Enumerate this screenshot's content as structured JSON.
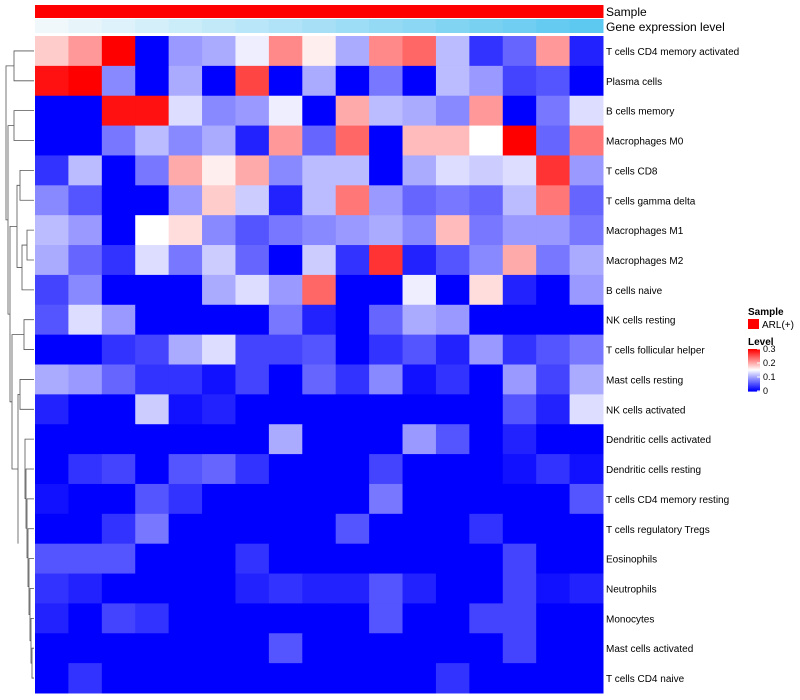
{
  "chart_data": {
    "type": "heatmap",
    "annotation_tracks": [
      {
        "name": "Sample",
        "colors_note": "all red"
      },
      {
        "name": "Gene expression level",
        "colors_note": "gradient light to sky blue"
      }
    ],
    "rows": [
      "T cells CD4 memory activated",
      "Plasma cells",
      "B cells memory",
      "Macrophages M0",
      "T cells CD8",
      "T cells gamma delta",
      "Macrophages M1",
      "Macrophages M2",
      "B cells naive",
      "NK cells resting",
      "T cells follicular helper",
      "Mast cells resting",
      "NK cells activated",
      "Dendritic cells activated",
      "Dendritic cells resting",
      "T cells CD4 memory resting",
      "T cells regulatory  Tregs",
      "Eosinophils",
      "Neutrophils",
      "Monocytes",
      "Mast cells activated",
      "T cells CD4 naive"
    ],
    "values": [
      [
        0.18,
        0.21,
        0.3,
        0.0,
        0.09,
        0.1,
        0.14,
        0.22,
        0.16,
        0.1,
        0.22,
        0.24,
        0.11,
        0.03,
        0.06,
        0.21,
        0.02
      ],
      [
        0.29,
        0.3,
        0.08,
        0.0,
        0.1,
        0.0,
        0.26,
        0.0,
        0.1,
        0.0,
        0.07,
        0.0,
        0.11,
        0.09,
        0.04,
        0.05,
        0.0
      ],
      [
        0.0,
        0.0,
        0.29,
        0.29,
        0.13,
        0.08,
        0.09,
        0.14,
        0.0,
        0.2,
        0.11,
        0.1,
        0.08,
        0.21,
        0.0,
        0.07,
        0.13
      ],
      [
        0.0,
        0.0,
        0.07,
        0.11,
        0.08,
        0.1,
        0.02,
        0.21,
        0.06,
        0.24,
        0.0,
        0.19,
        0.19,
        0.15,
        0.3,
        0.06,
        0.23
      ],
      [
        0.03,
        0.11,
        0.0,
        0.07,
        0.2,
        0.16,
        0.2,
        0.08,
        0.11,
        0.11,
        0.0,
        0.1,
        0.13,
        0.12,
        0.13,
        0.27,
        0.09
      ],
      [
        0.08,
        0.05,
        0.0,
        0.0,
        0.09,
        0.18,
        0.12,
        0.02,
        0.11,
        0.23,
        0.09,
        0.06,
        0.07,
        0.06,
        0.11,
        0.23,
        0.06
      ],
      [
        0.11,
        0.09,
        0.0,
        0.15,
        0.17,
        0.08,
        0.05,
        0.07,
        0.08,
        0.09,
        0.1,
        0.08,
        0.19,
        0.07,
        0.09,
        0.09,
        0.07
      ],
      [
        0.1,
        0.06,
        0.03,
        0.13,
        0.07,
        0.12,
        0.06,
        0.0,
        0.12,
        0.03,
        0.27,
        0.02,
        0.05,
        0.08,
        0.2,
        0.07,
        0.1
      ],
      [
        0.04,
        0.08,
        0.0,
        0.0,
        0.0,
        0.1,
        0.13,
        0.09,
        0.24,
        0.0,
        0.0,
        0.14,
        0.0,
        0.17,
        0.02,
        0.0,
        0.09
      ],
      [
        0.05,
        0.13,
        0.09,
        0.0,
        0.0,
        0.0,
        0.0,
        0.07,
        0.02,
        0.0,
        0.06,
        0.1,
        0.09,
        0.0,
        0.0,
        0.0,
        0.0
      ],
      [
        0.0,
        0.0,
        0.03,
        0.04,
        0.1,
        0.13,
        0.04,
        0.04,
        0.05,
        0.0,
        0.03,
        0.05,
        0.02,
        0.09,
        0.03,
        0.05,
        0.07
      ],
      [
        0.1,
        0.09,
        0.06,
        0.03,
        0.03,
        0.01,
        0.04,
        0.0,
        0.06,
        0.03,
        0.08,
        0.01,
        0.03,
        0.0,
        0.09,
        0.04,
        0.1
      ],
      [
        0.02,
        0.0,
        0.0,
        0.12,
        0.01,
        0.02,
        0.0,
        0.0,
        0.0,
        0.0,
        0.0,
        0.0,
        0.0,
        0.0,
        0.05,
        0.02,
        0.13
      ],
      [
        0.0,
        0.0,
        0.0,
        0.0,
        0.0,
        0.0,
        0.0,
        0.1,
        0.0,
        0.0,
        0.0,
        0.09,
        0.05,
        0.0,
        0.02,
        0.0,
        0.0
      ],
      [
        0.0,
        0.03,
        0.04,
        0.0,
        0.05,
        0.06,
        0.03,
        0.0,
        0.0,
        0.0,
        0.04,
        0.0,
        0.0,
        0.0,
        0.01,
        0.03,
        0.01
      ],
      [
        0.01,
        0.0,
        0.0,
        0.05,
        0.03,
        0.0,
        0.0,
        0.0,
        0.0,
        0.0,
        0.07,
        0.0,
        0.0,
        0.0,
        0.0,
        0.0,
        0.05
      ],
      [
        0.0,
        0.0,
        0.03,
        0.07,
        0.0,
        0.0,
        0.0,
        0.0,
        0.0,
        0.05,
        0.0,
        0.0,
        0.0,
        0.03,
        0.0,
        0.0,
        0.0
      ],
      [
        0.05,
        0.05,
        0.05,
        0.0,
        0.0,
        0.0,
        0.03,
        0.0,
        0.0,
        0.0,
        0.0,
        0.0,
        0.0,
        0.0,
        0.04,
        0.0,
        0.0
      ],
      [
        0.03,
        0.02,
        0.0,
        0.0,
        0.0,
        0.0,
        0.02,
        0.03,
        0.02,
        0.02,
        0.05,
        0.02,
        0.0,
        0.0,
        0.04,
        0.01,
        0.02
      ],
      [
        0.02,
        0.0,
        0.04,
        0.03,
        0.0,
        0.0,
        0.0,
        0.0,
        0.0,
        0.0,
        0.05,
        0.0,
        0.0,
        0.04,
        0.04,
        0.0,
        0.0
      ],
      [
        0.0,
        0.0,
        0.0,
        0.0,
        0.0,
        0.0,
        0.0,
        0.05,
        0.0,
        0.0,
        0.0,
        0.0,
        0.0,
        0.0,
        0.04,
        0.0,
        0.0
      ],
      [
        0.0,
        0.03,
        0.0,
        0.0,
        0.0,
        0.0,
        0.0,
        0.0,
        0.0,
        0.0,
        0.0,
        0.0,
        0.03,
        0.0,
        0.0,
        0.0,
        0.0
      ]
    ],
    "color_scale": {
      "low": "#0000ff",
      "mid": "#ffffff",
      "high": "#ff0000",
      "min": 0,
      "mid_value": 0.15,
      "max": 0.3
    },
    "legend": {
      "sample_title": "Sample",
      "sample_entry": "ARL(+)",
      "sample_color": "#ff0000",
      "level_title": "Level",
      "level_ticks": [
        "0.3",
        "0.2",
        "0.1",
        "0"
      ],
      "level_tick_values": [
        0.3,
        0.2,
        0.1,
        0
      ]
    }
  }
}
